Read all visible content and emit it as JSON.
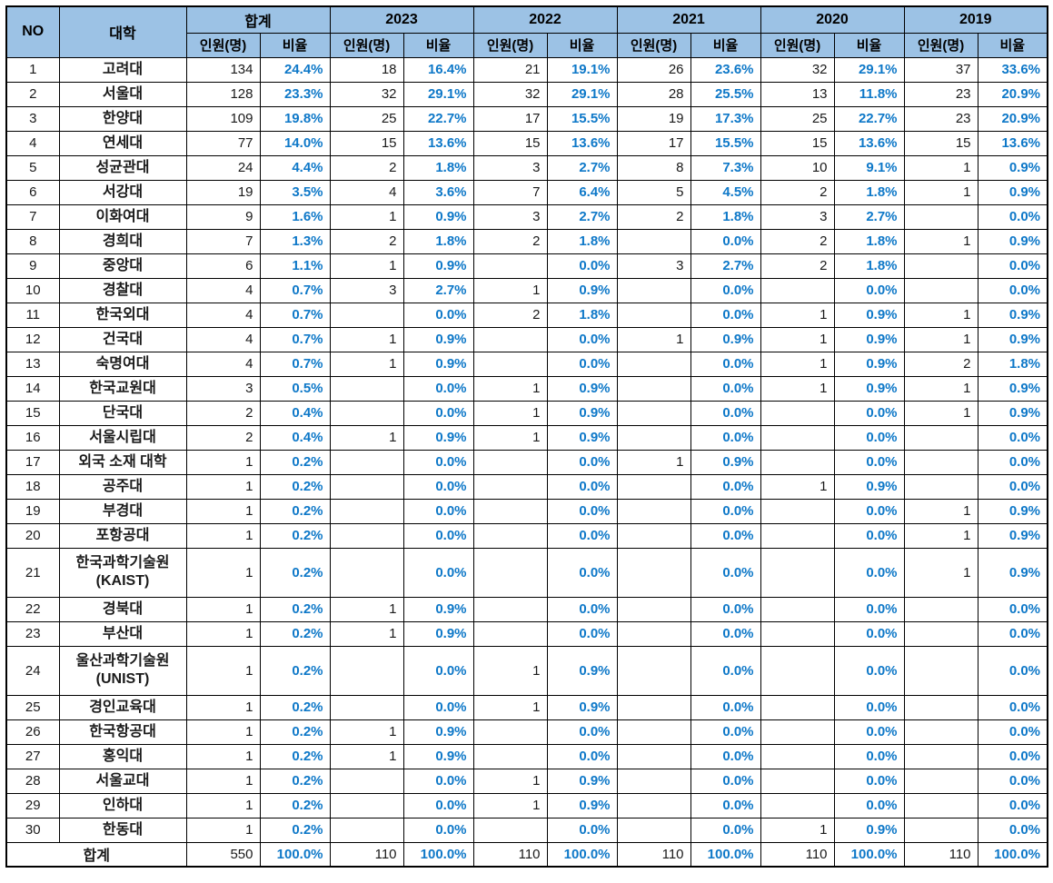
{
  "table": {
    "title": "university-admissions-by-year",
    "header": {
      "no": "NO",
      "university": "대학",
      "groups": [
        {
          "label": "합계"
        },
        {
          "label": "2023"
        },
        {
          "label": "2022"
        },
        {
          "label": "2021"
        },
        {
          "label": "2020"
        },
        {
          "label": "2019"
        }
      ],
      "sub_count": "인원(명)",
      "sub_ratio": "비율"
    },
    "rows": [
      {
        "no": "1",
        "university": "고려대",
        "values": [
          "134",
          "24.4%",
          "18",
          "16.4%",
          "21",
          "19.1%",
          "26",
          "23.6%",
          "32",
          "29.1%",
          "37",
          "33.6%"
        ]
      },
      {
        "no": "2",
        "university": "서울대",
        "values": [
          "128",
          "23.3%",
          "32",
          "29.1%",
          "32",
          "29.1%",
          "28",
          "25.5%",
          "13",
          "11.8%",
          "23",
          "20.9%"
        ]
      },
      {
        "no": "3",
        "university": "한양대",
        "values": [
          "109",
          "19.8%",
          "25",
          "22.7%",
          "17",
          "15.5%",
          "19",
          "17.3%",
          "25",
          "22.7%",
          "23",
          "20.9%"
        ]
      },
      {
        "no": "4",
        "university": "연세대",
        "values": [
          "77",
          "14.0%",
          "15",
          "13.6%",
          "15",
          "13.6%",
          "17",
          "15.5%",
          "15",
          "13.6%",
          "15",
          "13.6%"
        ]
      },
      {
        "no": "5",
        "university": "성균관대",
        "values": [
          "24",
          "4.4%",
          "2",
          "1.8%",
          "3",
          "2.7%",
          "8",
          "7.3%",
          "10",
          "9.1%",
          "1",
          "0.9%"
        ]
      },
      {
        "no": "6",
        "university": "서강대",
        "values": [
          "19",
          "3.5%",
          "4",
          "3.6%",
          "7",
          "6.4%",
          "5",
          "4.5%",
          "2",
          "1.8%",
          "1",
          "0.9%"
        ]
      },
      {
        "no": "7",
        "university": "이화여대",
        "values": [
          "9",
          "1.6%",
          "1",
          "0.9%",
          "3",
          "2.7%",
          "2",
          "1.8%",
          "3",
          "2.7%",
          "",
          "0.0%"
        ]
      },
      {
        "no": "8",
        "university": "경희대",
        "values": [
          "7",
          "1.3%",
          "2",
          "1.8%",
          "2",
          "1.8%",
          "",
          "0.0%",
          "2",
          "1.8%",
          "1",
          "0.9%"
        ]
      },
      {
        "no": "9",
        "university": "중앙대",
        "values": [
          "6",
          "1.1%",
          "1",
          "0.9%",
          "",
          "0.0%",
          "3",
          "2.7%",
          "2",
          "1.8%",
          "",
          "0.0%"
        ]
      },
      {
        "no": "10",
        "university": "경찰대",
        "values": [
          "4",
          "0.7%",
          "3",
          "2.7%",
          "1",
          "0.9%",
          "",
          "0.0%",
          "",
          "0.0%",
          "",
          "0.0%"
        ]
      },
      {
        "no": "11",
        "university": "한국외대",
        "values": [
          "4",
          "0.7%",
          "",
          "0.0%",
          "2",
          "1.8%",
          "",
          "0.0%",
          "1",
          "0.9%",
          "1",
          "0.9%"
        ]
      },
      {
        "no": "12",
        "university": "건국대",
        "values": [
          "4",
          "0.7%",
          "1",
          "0.9%",
          "",
          "0.0%",
          "1",
          "0.9%",
          "1",
          "0.9%",
          "1",
          "0.9%"
        ]
      },
      {
        "no": "13",
        "university": "숙명여대",
        "values": [
          "4",
          "0.7%",
          "1",
          "0.9%",
          "",
          "0.0%",
          "",
          "0.0%",
          "1",
          "0.9%",
          "2",
          "1.8%"
        ]
      },
      {
        "no": "14",
        "university": "한국교원대",
        "values": [
          "3",
          "0.5%",
          "",
          "0.0%",
          "1",
          "0.9%",
          "",
          "0.0%",
          "1",
          "0.9%",
          "1",
          "0.9%"
        ]
      },
      {
        "no": "15",
        "university": "단국대",
        "values": [
          "2",
          "0.4%",
          "",
          "0.0%",
          "1",
          "0.9%",
          "",
          "0.0%",
          "",
          "0.0%",
          "1",
          "0.9%"
        ]
      },
      {
        "no": "16",
        "university": "서울시립대",
        "values": [
          "2",
          "0.4%",
          "1",
          "0.9%",
          "1",
          "0.9%",
          "",
          "0.0%",
          "",
          "0.0%",
          "",
          "0.0%"
        ]
      },
      {
        "no": "17",
        "university": "외국 소재 대학",
        "values": [
          "1",
          "0.2%",
          "",
          "0.0%",
          "",
          "0.0%",
          "1",
          "0.9%",
          "",
          "0.0%",
          "",
          "0.0%"
        ]
      },
      {
        "no": "18",
        "university": "공주대",
        "values": [
          "1",
          "0.2%",
          "",
          "0.0%",
          "",
          "0.0%",
          "",
          "0.0%",
          "1",
          "0.9%",
          "",
          "0.0%"
        ]
      },
      {
        "no": "19",
        "university": "부경대",
        "values": [
          "1",
          "0.2%",
          "",
          "0.0%",
          "",
          "0.0%",
          "",
          "0.0%",
          "",
          "0.0%",
          "1",
          "0.9%"
        ]
      },
      {
        "no": "20",
        "university": "포항공대",
        "values": [
          "1",
          "0.2%",
          "",
          "0.0%",
          "",
          "0.0%",
          "",
          "0.0%",
          "",
          "0.0%",
          "1",
          "0.9%"
        ]
      },
      {
        "no": "21",
        "university": "한국과학기술원",
        "university_sub": "(KAIST)",
        "values": [
          "1",
          "0.2%",
          "",
          "0.0%",
          "",
          "0.0%",
          "",
          "0.0%",
          "",
          "0.0%",
          "1",
          "0.9%"
        ]
      },
      {
        "no": "22",
        "university": "경북대",
        "values": [
          "1",
          "0.2%",
          "1",
          "0.9%",
          "",
          "0.0%",
          "",
          "0.0%",
          "",
          "0.0%",
          "",
          "0.0%"
        ]
      },
      {
        "no": "23",
        "university": "부산대",
        "values": [
          "1",
          "0.2%",
          "1",
          "0.9%",
          "",
          "0.0%",
          "",
          "0.0%",
          "",
          "0.0%",
          "",
          "0.0%"
        ]
      },
      {
        "no": "24",
        "university": "울산과학기술원",
        "university_sub": "(UNIST)",
        "values": [
          "1",
          "0.2%",
          "",
          "0.0%",
          "1",
          "0.9%",
          "",
          "0.0%",
          "",
          "0.0%",
          "",
          "0.0%"
        ]
      },
      {
        "no": "25",
        "university": "경인교육대",
        "values": [
          "1",
          "0.2%",
          "",
          "0.0%",
          "1",
          "0.9%",
          "",
          "0.0%",
          "",
          "0.0%",
          "",
          "0.0%"
        ]
      },
      {
        "no": "26",
        "university": "한국항공대",
        "values": [
          "1",
          "0.2%",
          "1",
          "0.9%",
          "",
          "0.0%",
          "",
          "0.0%",
          "",
          "0.0%",
          "",
          "0.0%"
        ]
      },
      {
        "no": "27",
        "university": "홍익대",
        "values": [
          "1",
          "0.2%",
          "1",
          "0.9%",
          "",
          "0.0%",
          "",
          "0.0%",
          "",
          "0.0%",
          "",
          "0.0%"
        ]
      },
      {
        "no": "28",
        "university": "서울교대",
        "values": [
          "1",
          "0.2%",
          "",
          "0.0%",
          "1",
          "0.9%",
          "",
          "0.0%",
          "",
          "0.0%",
          "",
          "0.0%"
        ]
      },
      {
        "no": "29",
        "university": "인하대",
        "values": [
          "1",
          "0.2%",
          "",
          "0.0%",
          "1",
          "0.9%",
          "",
          "0.0%",
          "",
          "0.0%",
          "",
          "0.0%"
        ]
      },
      {
        "no": "30",
        "university": "한동대",
        "values": [
          "1",
          "0.2%",
          "",
          "0.0%",
          "",
          "0.0%",
          "",
          "0.0%",
          "1",
          "0.9%",
          "",
          "0.0%"
        ]
      }
    ],
    "total_row": {
      "label": "합계",
      "values": [
        "550",
        "100.0%",
        "110",
        "100.0%",
        "110",
        "100.0%",
        "110",
        "100.0%",
        "110",
        "100.0%",
        "110",
        "100.0%"
      ]
    }
  },
  "colors": {
    "header_bg": "#9CC2E5",
    "ratio_text": "#0E78C8",
    "border": "#000000"
  }
}
